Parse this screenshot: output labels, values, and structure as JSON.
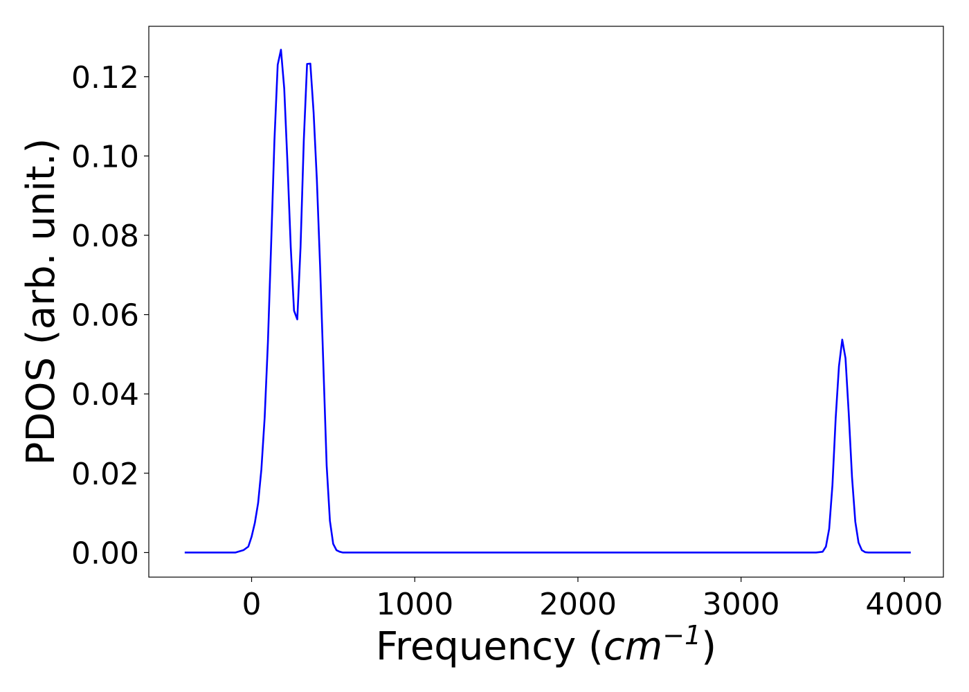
{
  "chart_data": {
    "type": "line",
    "xlabel": "Frequency (cm⁻¹)",
    "xlabel_prefix": "Frequency (",
    "xlabel_unit": "cm",
    "xlabel_exponent": "−1",
    "xlabel_suffix": ")",
    "ylabel": "PDOS (arb. unit.)",
    "xlim": [
      -630,
      4240
    ],
    "ylim": [
      -0.0062,
      0.1327
    ],
    "xticks": [
      0,
      1000,
      2000,
      3000,
      4000
    ],
    "xtick_labels": [
      "0",
      "1000",
      "2000",
      "3000",
      "4000"
    ],
    "yticks": [
      0.0,
      0.02,
      0.04,
      0.06,
      0.08,
      0.1,
      0.12
    ],
    "ytick_labels": [
      "0.00",
      "0.02",
      "0.04",
      "0.06",
      "0.08",
      "0.10",
      "0.12"
    ],
    "grid": false,
    "series": [
      {
        "color": "#0000ff",
        "x": [
          -410,
          -100,
          -50,
          -20,
          0,
          20,
          40,
          60,
          80,
          100,
          120,
          140,
          160,
          180,
          200,
          220,
          240,
          260,
          280,
          300,
          320,
          340,
          360,
          380,
          400,
          420,
          440,
          460,
          480,
          500,
          520,
          540,
          560,
          580,
          600,
          650,
          800,
          1200,
          2000,
          3000,
          3460,
          3500,
          3520,
          3540,
          3560,
          3580,
          3600,
          3620,
          3640,
          3660,
          3680,
          3700,
          3720,
          3740,
          3760,
          3780,
          3800,
          3850,
          4040
        ],
        "y": [
          0.0,
          0.0,
          0.0006,
          0.0015,
          0.004,
          0.0075,
          0.0125,
          0.021,
          0.034,
          0.053,
          0.078,
          0.104,
          0.123,
          0.1268,
          0.117,
          0.098,
          0.077,
          0.061,
          0.0588,
          0.077,
          0.104,
          0.1232,
          0.1233,
          0.111,
          0.094,
          0.072,
          0.047,
          0.022,
          0.008,
          0.0022,
          0.0006,
          0.0002,
          0.0,
          0.0,
          0.0,
          0.0,
          0.0,
          0.0,
          0.0,
          0.0,
          0.0,
          0.0002,
          0.0015,
          0.006,
          0.017,
          0.034,
          0.047,
          0.0537,
          0.049,
          0.035,
          0.019,
          0.0078,
          0.0025,
          0.0006,
          0.0001,
          0.0,
          0.0,
          0.0,
          0.0
        ]
      }
    ]
  }
}
